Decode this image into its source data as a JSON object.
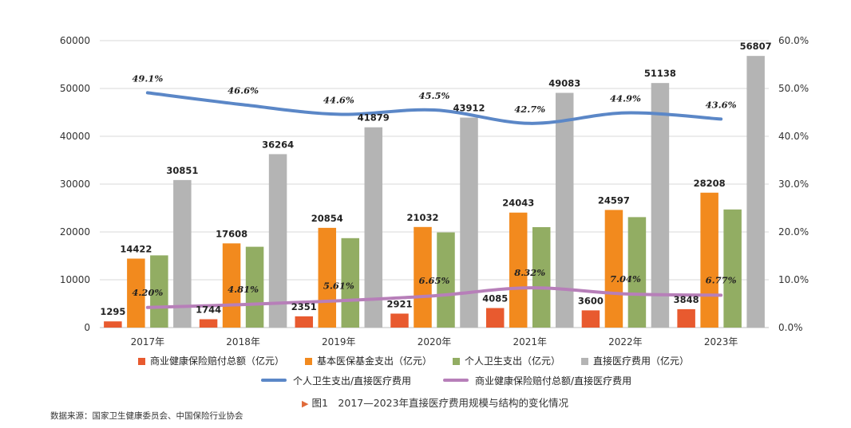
{
  "chart_data": {
    "type": "bar",
    "categories": [
      "2017年",
      "2018年",
      "2019年",
      "2020年",
      "2021年",
      "2022年",
      "2023年"
    ],
    "y_left_ticks": [
      "0",
      "10000",
      "20000",
      "30000",
      "40000",
      "50000",
      "60000"
    ],
    "y_right_ticks": [
      "0.0%",
      "10.0%",
      "20.0%",
      "30.0%",
      "40.0%",
      "50.0%",
      "60.0%"
    ],
    "ylim": [
      0,
      60000
    ],
    "y2lim": [
      0,
      60
    ],
    "grid": true,
    "series": [
      {
        "name": "商业健康保险赔付总额（亿元）",
        "kind": "bar",
        "color": "#e85a2f",
        "values": [
          1295,
          1744,
          2351,
          2921,
          4085,
          3600,
          3848
        ],
        "labels": [
          "1295",
          "1744",
          "2351",
          "2921",
          "4085",
          "3600",
          "3848"
        ]
      },
      {
        "name": "基本医保基金支出（亿元）",
        "kind": "bar",
        "color": "#f28a1e",
        "values": [
          14422,
          17608,
          20854,
          21032,
          24043,
          24597,
          28208
        ],
        "labels": [
          "14422",
          "17608",
          "20854",
          "21032",
          "24043",
          "24597",
          "28208"
        ]
      },
      {
        "name": "个人卫生支出（亿元）",
        "kind": "bar",
        "color": "#92ad63",
        "values": [
          15100,
          16900,
          18700,
          19900,
          21000,
          23100,
          24700
        ],
        "labels": []
      },
      {
        "name": "直接医疗费用（亿元）",
        "kind": "bar",
        "color": "#b4b4b4",
        "values": [
          30851,
          36264,
          41879,
          43912,
          49083,
          51138,
          56807
        ],
        "labels": [
          "30851",
          "36264",
          "41879",
          "43912",
          "49083",
          "51138",
          "56807"
        ]
      },
      {
        "name": "个人卫生支出/直接医疗费用",
        "kind": "line",
        "axis": "right",
        "color": "#5b87c7",
        "values": [
          49.1,
          46.6,
          44.6,
          45.5,
          42.7,
          44.9,
          43.6
        ],
        "labels": [
          "49.1%",
          "46.6%",
          "44.6%",
          "45.5%",
          "42.7%",
          "44.9%",
          "43.6%"
        ]
      },
      {
        "name": "商业健康保险赔付总额/直接医疗费用",
        "kind": "line",
        "axis": "right",
        "color": "#b77fb9",
        "values": [
          4.2,
          4.81,
          5.61,
          6.65,
          8.32,
          7.04,
          6.77
        ],
        "labels": [
          "4.20%",
          "4.81%",
          "5.61%",
          "6.65%",
          "8.32%",
          "7.04%",
          "6.77%"
        ]
      }
    ]
  },
  "caption": "图1　2017—2023年直接医疗费用规模与结构的变化情况",
  "source": "数据来源：国家卫生健康委员会、中国保险行业协会"
}
